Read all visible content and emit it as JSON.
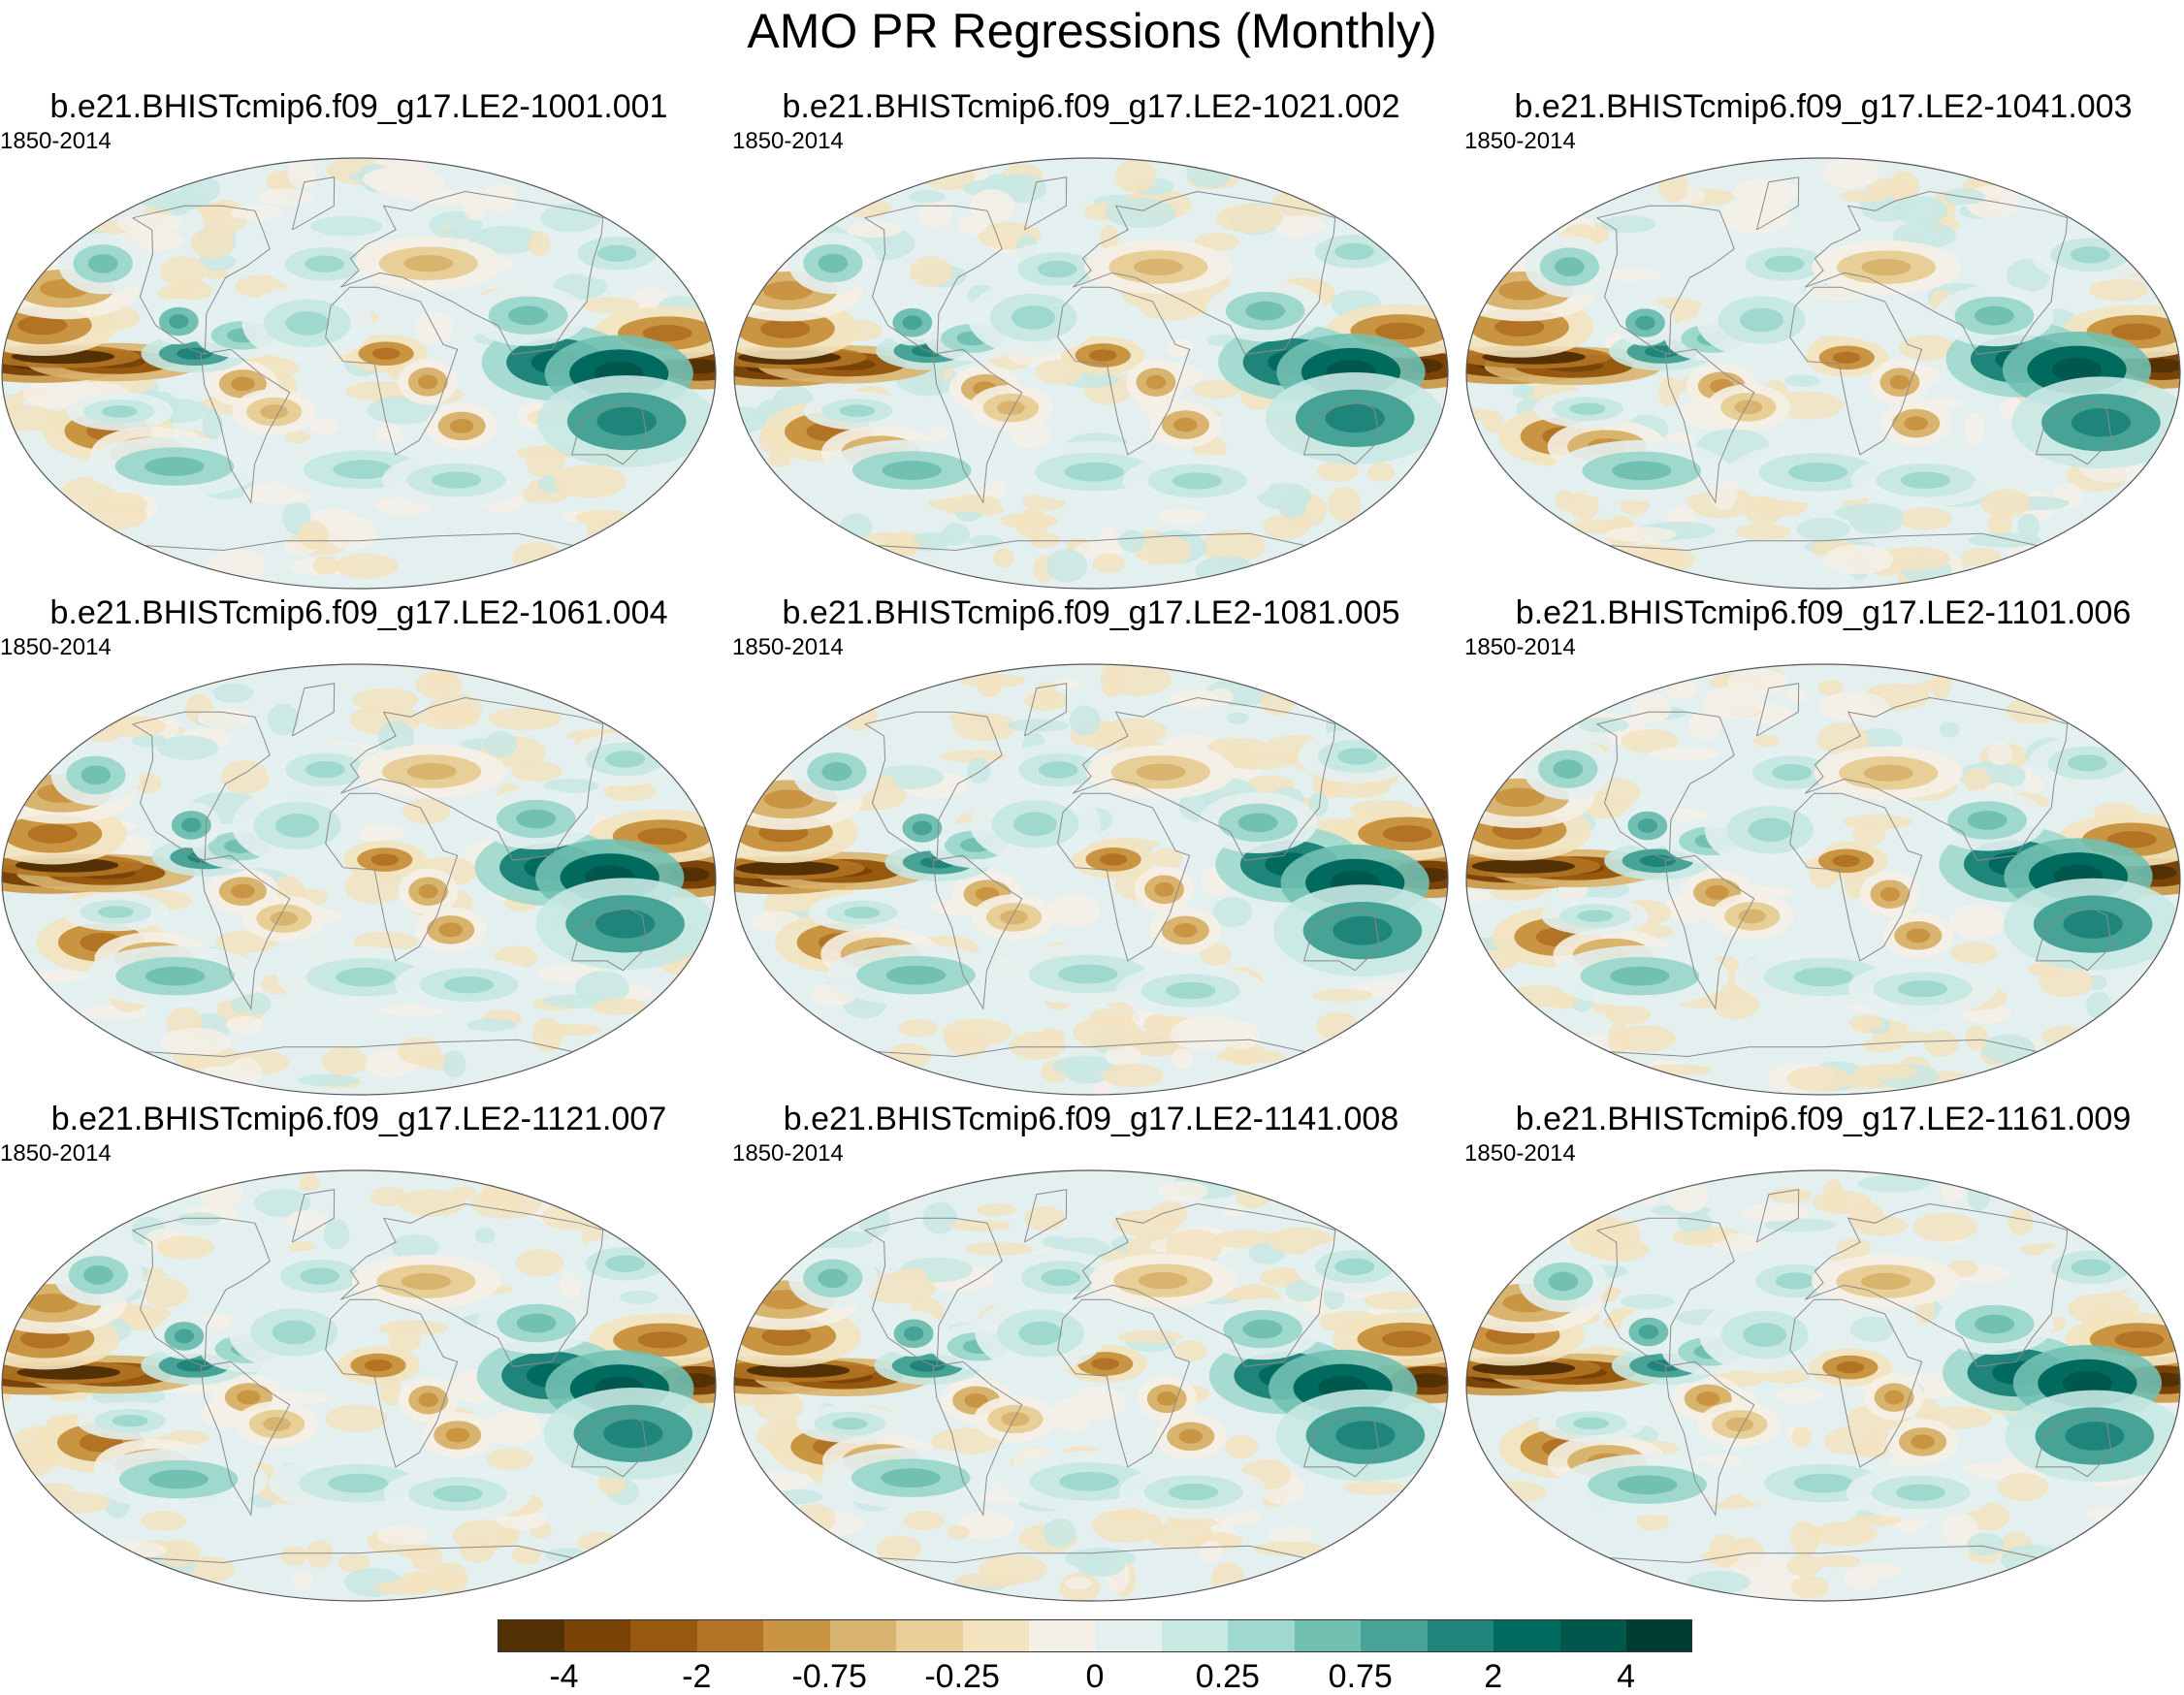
{
  "title": "AMO PR Regressions (Monthly)",
  "panels": [
    {
      "name": "b.e21.BHISTcmip6.f09_g17.LE2-1001.001",
      "period": "1850-2014",
      "var": 0
    },
    {
      "name": "b.e21.BHISTcmip6.f09_g17.LE2-1021.002",
      "period": "1850-2014",
      "var": 1
    },
    {
      "name": "b.e21.BHISTcmip6.f09_g17.LE2-1041.003",
      "period": "1850-2014",
      "var": 2
    },
    {
      "name": "b.e21.BHISTcmip6.f09_g17.LE2-1061.004",
      "period": "1850-2014",
      "var": 3
    },
    {
      "name": "b.e21.BHISTcmip6.f09_g17.LE2-1081.005",
      "period": "1850-2014",
      "var": 4
    },
    {
      "name": "b.e21.BHISTcmip6.f09_g17.LE2-1101.006",
      "period": "1850-2014",
      "var": 5
    },
    {
      "name": "b.e21.BHISTcmip6.f09_g17.LE2-1121.007",
      "period": "1850-2014",
      "var": 6
    },
    {
      "name": "b.e21.BHISTcmip6.f09_g17.LE2-1141.008",
      "period": "1850-2014",
      "var": 7
    },
    {
      "name": "b.e21.BHISTcmip6.f09_g17.LE2-1161.009",
      "period": "1850-2014",
      "var": 8
    }
  ],
  "colorbar": {
    "colors": [
      "#543005",
      "#7a4408",
      "#96590f",
      "#b27424",
      "#c99543",
      "#d9b46e",
      "#e8cf98",
      "#f3e3bf",
      "#f5f0e6",
      "#e4f0ef",
      "#c8e8e3",
      "#9fd8cd",
      "#72c0b2",
      "#46a396",
      "#1f8479",
      "#006a5e",
      "#00574c",
      "#003c30"
    ],
    "tick_labels": [
      "-4",
      "-2",
      "-0.75",
      "-0.25",
      "0",
      "0.25",
      "0.75",
      "2",
      "4"
    ]
  }
}
